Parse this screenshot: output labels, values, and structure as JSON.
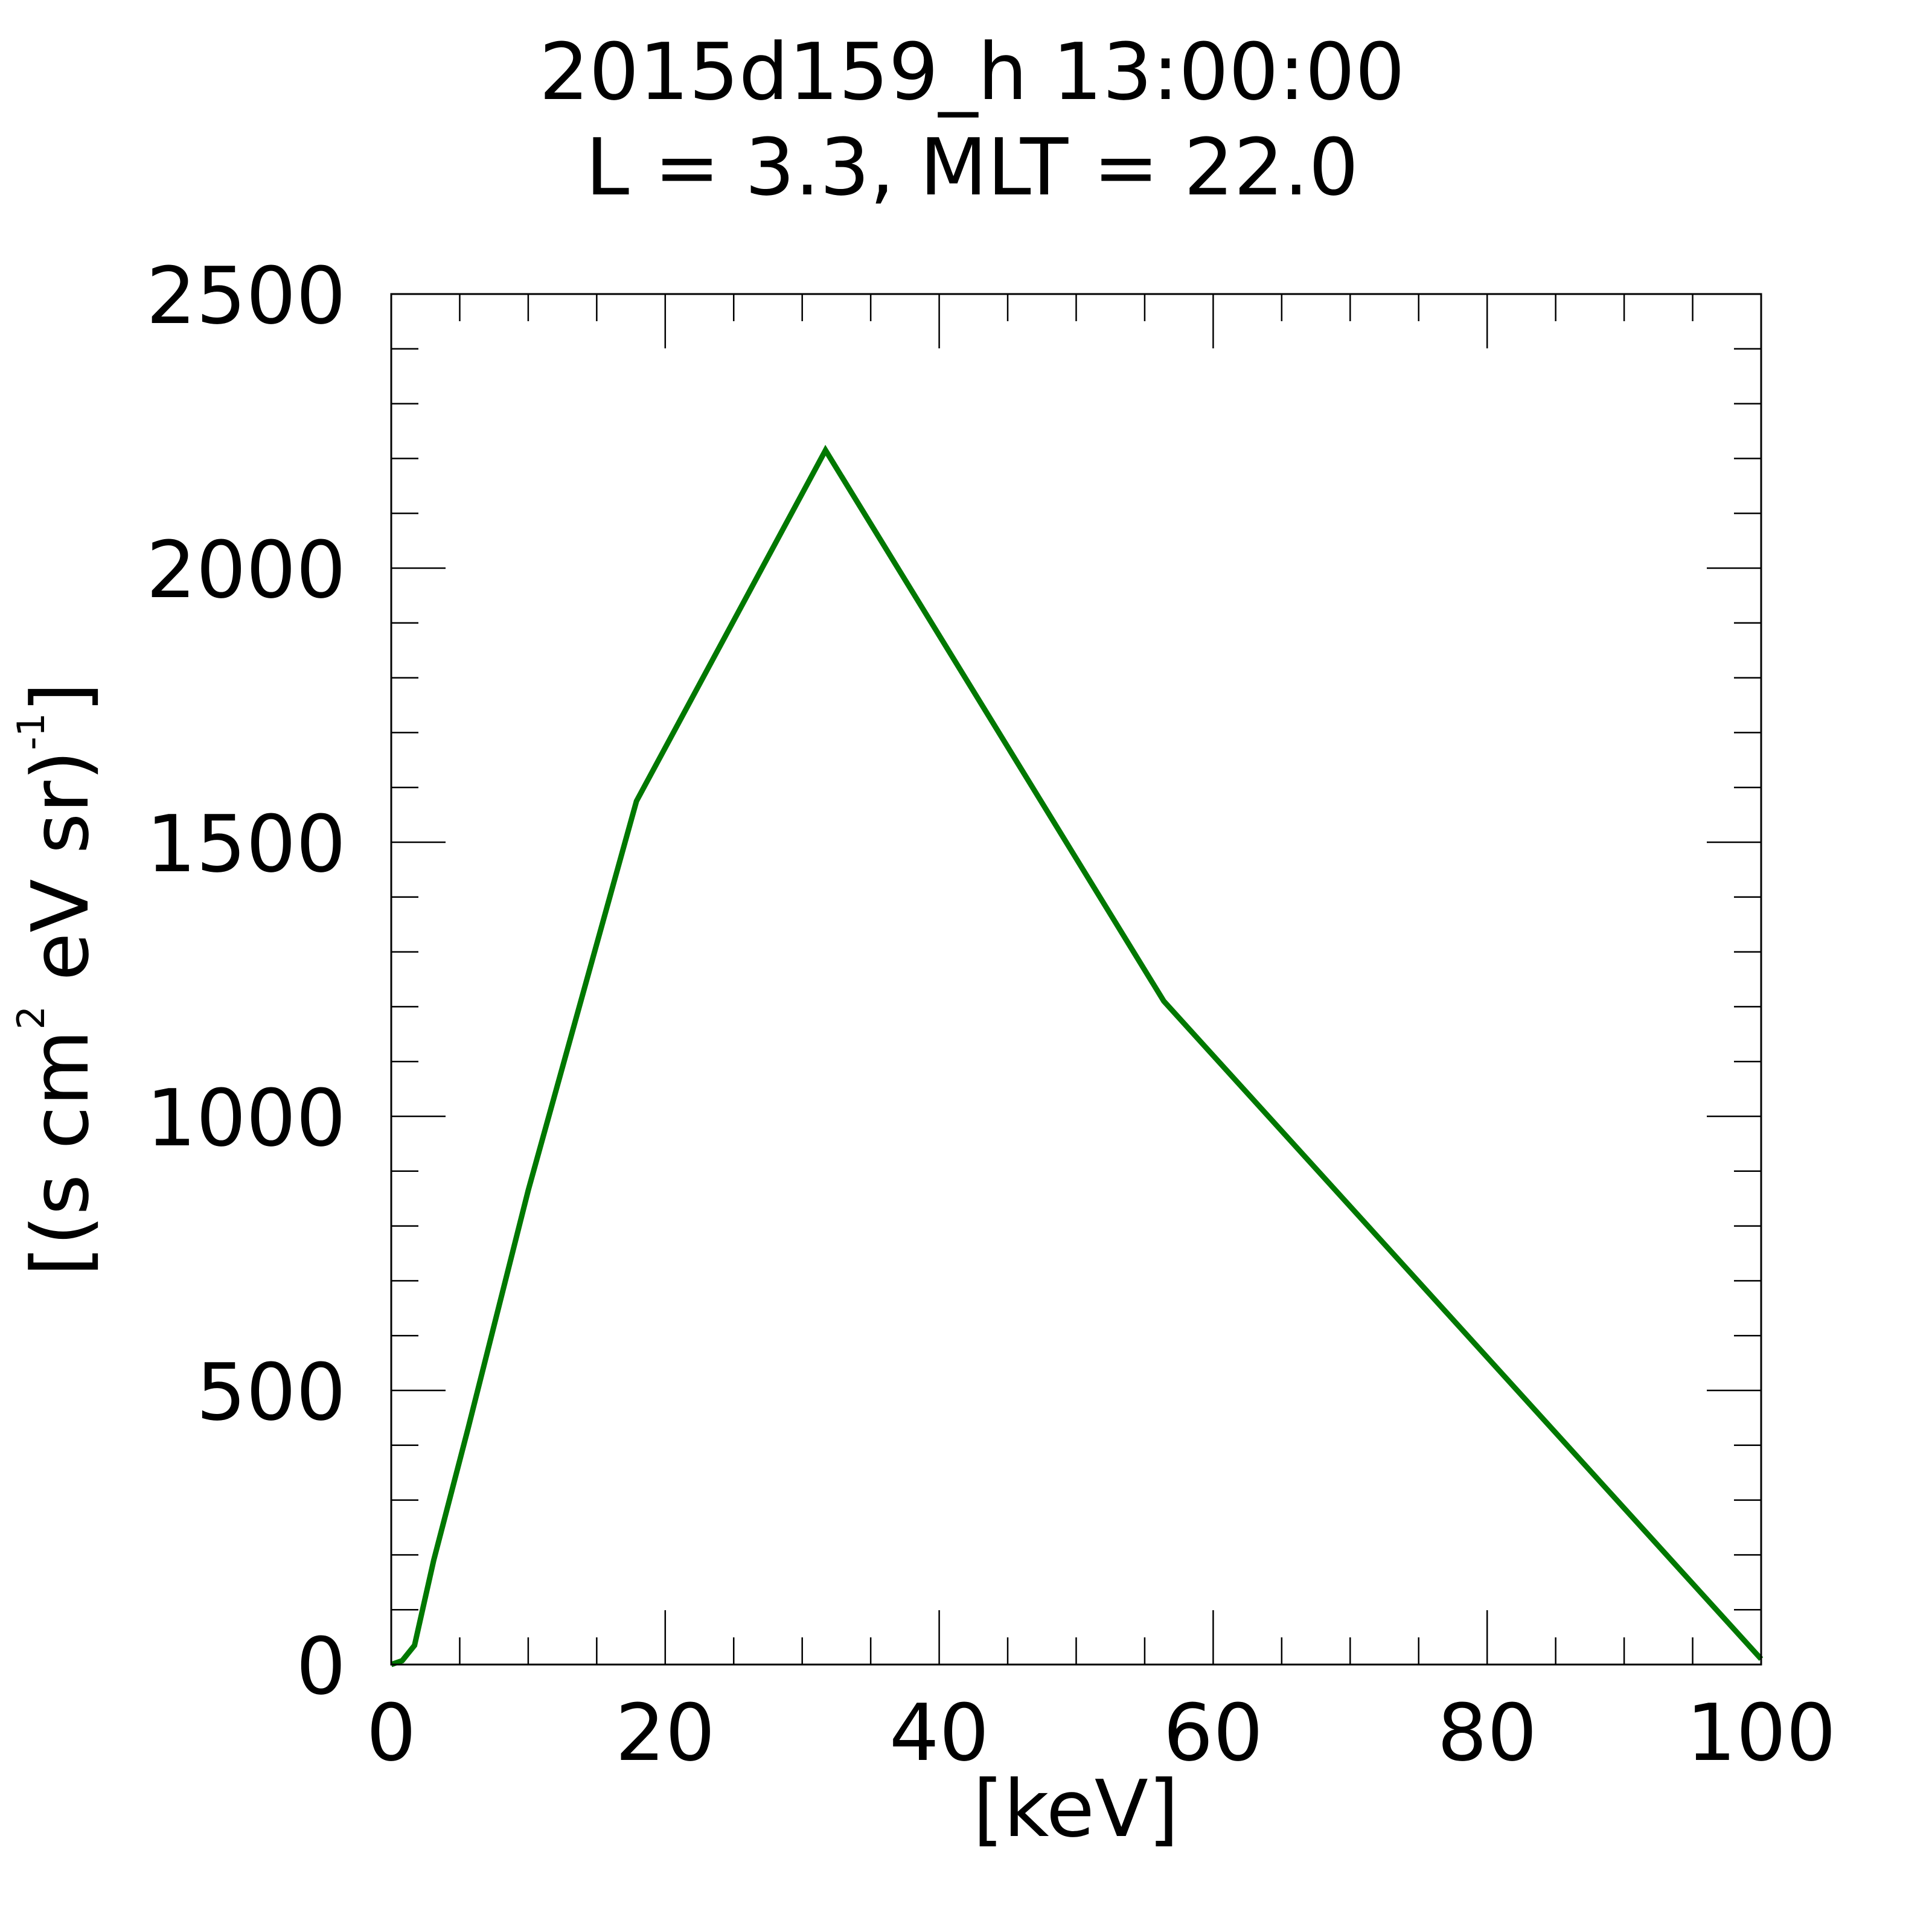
{
  "chart_data": {
    "type": "line",
    "title": "2015d159_h  13:00:00",
    "subtitle": "L = 3.3, MLT = 22.0",
    "xlabel": "[keV]",
    "ylabel": {
      "part1": "[(s cm",
      "sup1": "2",
      "part2": " eV sr)",
      "sup2": "-1",
      "part3": "]"
    },
    "xlim": [
      0,
      100
    ],
    "ylim": [
      0,
      2500
    ],
    "x_ticks": [
      "0",
      "20",
      "40",
      "60",
      "80",
      "100"
    ],
    "y_ticks": [
      "0",
      "500",
      "1000",
      "1500",
      "2000",
      "2500"
    ],
    "grid": false,
    "series": [
      {
        "color": "#007800",
        "x": [
          0,
          0.8,
          1.7,
          3.1,
          5.6,
          10.0,
          17.9,
          31.7,
          56.4,
          100
        ],
        "y": [
          0,
          7,
          35,
          190,
          430,
          865,
          1575,
          2215,
          1210,
          10
        ]
      }
    ]
  }
}
